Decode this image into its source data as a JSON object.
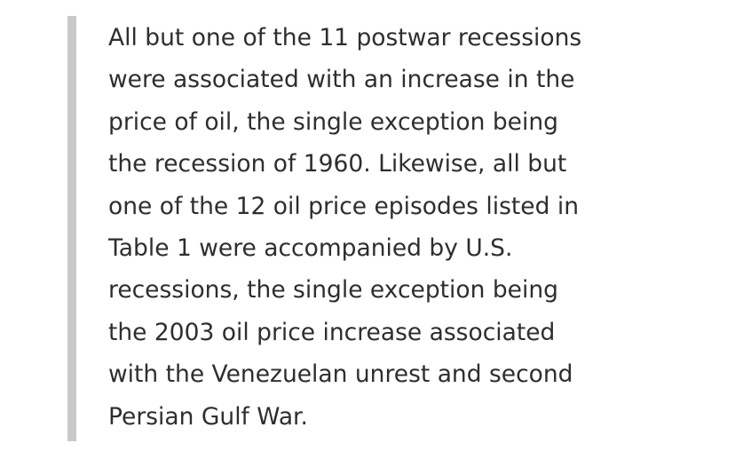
{
  "blockquote": {
    "lines": [
      "All but one of the 11 postwar recessions",
      "were associated with an increase in the",
      "price of oil, the single exception being",
      "the recession of 1960. Likewise, all but",
      "one of the 12 oil price episodes listed in",
      "Table 1 were accompanied by U.S.",
      "recessions, the single exception being",
      "the 2003 oil price increase associated",
      "with the Venezuelan unrest and second",
      "Persian Gulf War."
    ]
  }
}
